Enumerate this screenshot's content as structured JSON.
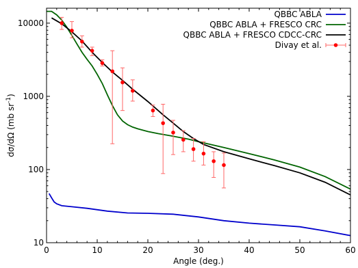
{
  "chart_data": {
    "type": "line",
    "xlabel": "Angle (deg.)",
    "ylabel": "dσ/dΩ (mb sr⁻¹)",
    "ylabel_base": "dσ/dΩ (mb sr",
    "ylabel_sup": "-1",
    "ylabel_close": ")",
    "xlim": [
      0,
      60
    ],
    "ylim": [
      10,
      16000
    ],
    "yscale": "log",
    "x_ticks": [
      0,
      10,
      20,
      30,
      40,
      50,
      60
    ],
    "x_tick_labels": [
      "0",
      "10",
      "20",
      "30",
      "40",
      "50",
      "60"
    ],
    "y_ticks": [
      10,
      100,
      1000,
      10000
    ],
    "y_tick_labels": [
      "10",
      "100",
      "1000",
      "10000"
    ],
    "legend_position": "top-right",
    "series": [
      {
        "name": "QBBC ABLA",
        "kind": "line",
        "color": "#0000cc",
        "x": [
          0.5,
          1,
          1.5,
          2,
          3,
          5,
          8,
          12,
          16,
          20,
          25,
          30,
          35,
          40,
          45,
          50,
          55,
          60
        ],
        "y": [
          47,
          41,
          36,
          34,
          32,
          31,
          29.5,
          27,
          25.5,
          25.2,
          24.5,
          22.5,
          20,
          18.5,
          17.5,
          16.5,
          14.5,
          12.5
        ]
      },
      {
        "name": "QBBC ABLA + FRESCO CRC",
        "kind": "line",
        "color": "#006400",
        "x": [
          0,
          1,
          2,
          3,
          4,
          5,
          6,
          7,
          8,
          9,
          10,
          11,
          12,
          13,
          14,
          15,
          16,
          17,
          18,
          20,
          22,
          25,
          28,
          30,
          35,
          40,
          45,
          50,
          55,
          60
        ],
        "y": [
          14500,
          14500,
          13000,
          11000,
          8800,
          6800,
          5200,
          4000,
          3200,
          2600,
          2000,
          1500,
          1050,
          750,
          560,
          460,
          410,
          380,
          360,
          330,
          310,
          285,
          260,
          240,
          200,
          165,
          135,
          108,
          80,
          54
        ]
      },
      {
        "name": "QBBC ABLA + FRESCO CDCC-CRC",
        "kind": "line",
        "color": "#000000",
        "x": [
          1,
          3,
          5,
          7,
          9,
          11,
          13,
          15,
          17,
          20,
          23,
          25,
          27,
          29,
          31,
          35,
          40,
          45,
          50,
          55,
          60
        ],
        "y": [
          11800,
          9800,
          7600,
          5700,
          4000,
          2900,
          2150,
          1650,
          1250,
          850,
          560,
          430,
          330,
          265,
          220,
          175,
          140,
          113,
          90,
          67,
          45
        ]
      },
      {
        "name": "Divay et al.",
        "kind": "errorbar",
        "color": "#ff0000",
        "errcolor": "#ff6666",
        "x": [
          3,
          5,
          7,
          9,
          11,
          13,
          15,
          17,
          21,
          23,
          25,
          27,
          29,
          31,
          33,
          35
        ],
        "y": [
          10000,
          7900,
          5600,
          4200,
          2850,
          2200,
          1550,
          1190,
          640,
          430,
          320,
          255,
          190,
          165,
          130,
          115
        ],
        "yerr_low": [
          8200,
          6300,
          4700,
          3600,
          2600,
          225,
          640,
          860,
          530,
          88,
          160,
          175,
          130,
          115,
          78,
          56
        ],
        "yerr_high": [
          12000,
          10500,
          6700,
          4700,
          3150,
          4200,
          2450,
          1680,
          760,
          780,
          470,
          340,
          265,
          240,
          175,
          168
        ]
      }
    ]
  }
}
